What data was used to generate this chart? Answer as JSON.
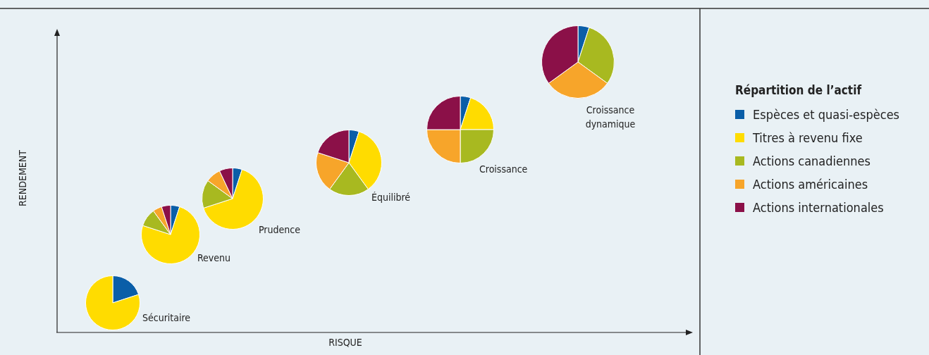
{
  "chart_data": [
    {
      "type": "other",
      "xlabel": "RISQUE",
      "ylabel": "RENDEMENT",
      "legend_title": "Répartition de l’actif",
      "categories": [
        "Espèces et quasi-espèces",
        "Titres à revenu fixe",
        "Actions canadiennes",
        "Actions américaines",
        "Actions internationales"
      ],
      "colors": [
        "#0a5ea8",
        "#ffdc00",
        "#a8b920",
        "#f7a52a",
        "#8b1048"
      ]
    },
    {
      "type": "pie",
      "title": "Sécuritaire",
      "categories": [
        null,
        null
      ],
      "values": [
        20,
        80
      ],
      "colors": [
        "#0a5ea8",
        "#ffdc00"
      ]
    },
    {
      "type": "pie",
      "title": "Revenu",
      "categories": [
        null,
        null,
        null,
        null,
        null
      ],
      "values": [
        5,
        75,
        10,
        5,
        5
      ],
      "colors": [
        "#0a5ea8",
        "#ffdc00",
        "#a8b920",
        "#f7a52a",
        "#8b1048"
      ]
    },
    {
      "type": "pie",
      "title": "Prudence",
      "categories": [
        null,
        null,
        null,
        null,
        null
      ],
      "values": [
        5,
        65,
        15,
        8,
        7
      ],
      "colors": [
        "#0a5ea8",
        "#ffdc00",
        "#a8b920",
        "#f7a52a",
        "#8b1048"
      ]
    },
    {
      "type": "pie",
      "title": "Équilibré",
      "categories": [
        null,
        null,
        null,
        null,
        null
      ],
      "values": [
        5,
        35,
        20,
        20,
        20
      ],
      "colors": [
        "#0a5ea8",
        "#ffdc00",
        "#a8b920",
        "#f7a52a",
        "#8b1048"
      ]
    },
    {
      "type": "pie",
      "title": "Croissance",
      "categories": [
        null,
        null,
        null,
        null,
        null
      ],
      "values": [
        5,
        20,
        25,
        25,
        25
      ],
      "colors": [
        "#0a5ea8",
        "#ffdc00",
        "#a8b920",
        "#f7a52a",
        "#8b1048"
      ]
    },
    {
      "type": "pie",
      "title": "Croissance dynamique",
      "categories": [
        null,
        null,
        null,
        null,
        null
      ],
      "values": [
        5,
        0,
        30,
        30,
        35
      ],
      "colors": [
        "#0a5ea8",
        "#ffdc00",
        "#a8b920",
        "#f7a52a",
        "#8b1048"
      ]
    }
  ]
}
